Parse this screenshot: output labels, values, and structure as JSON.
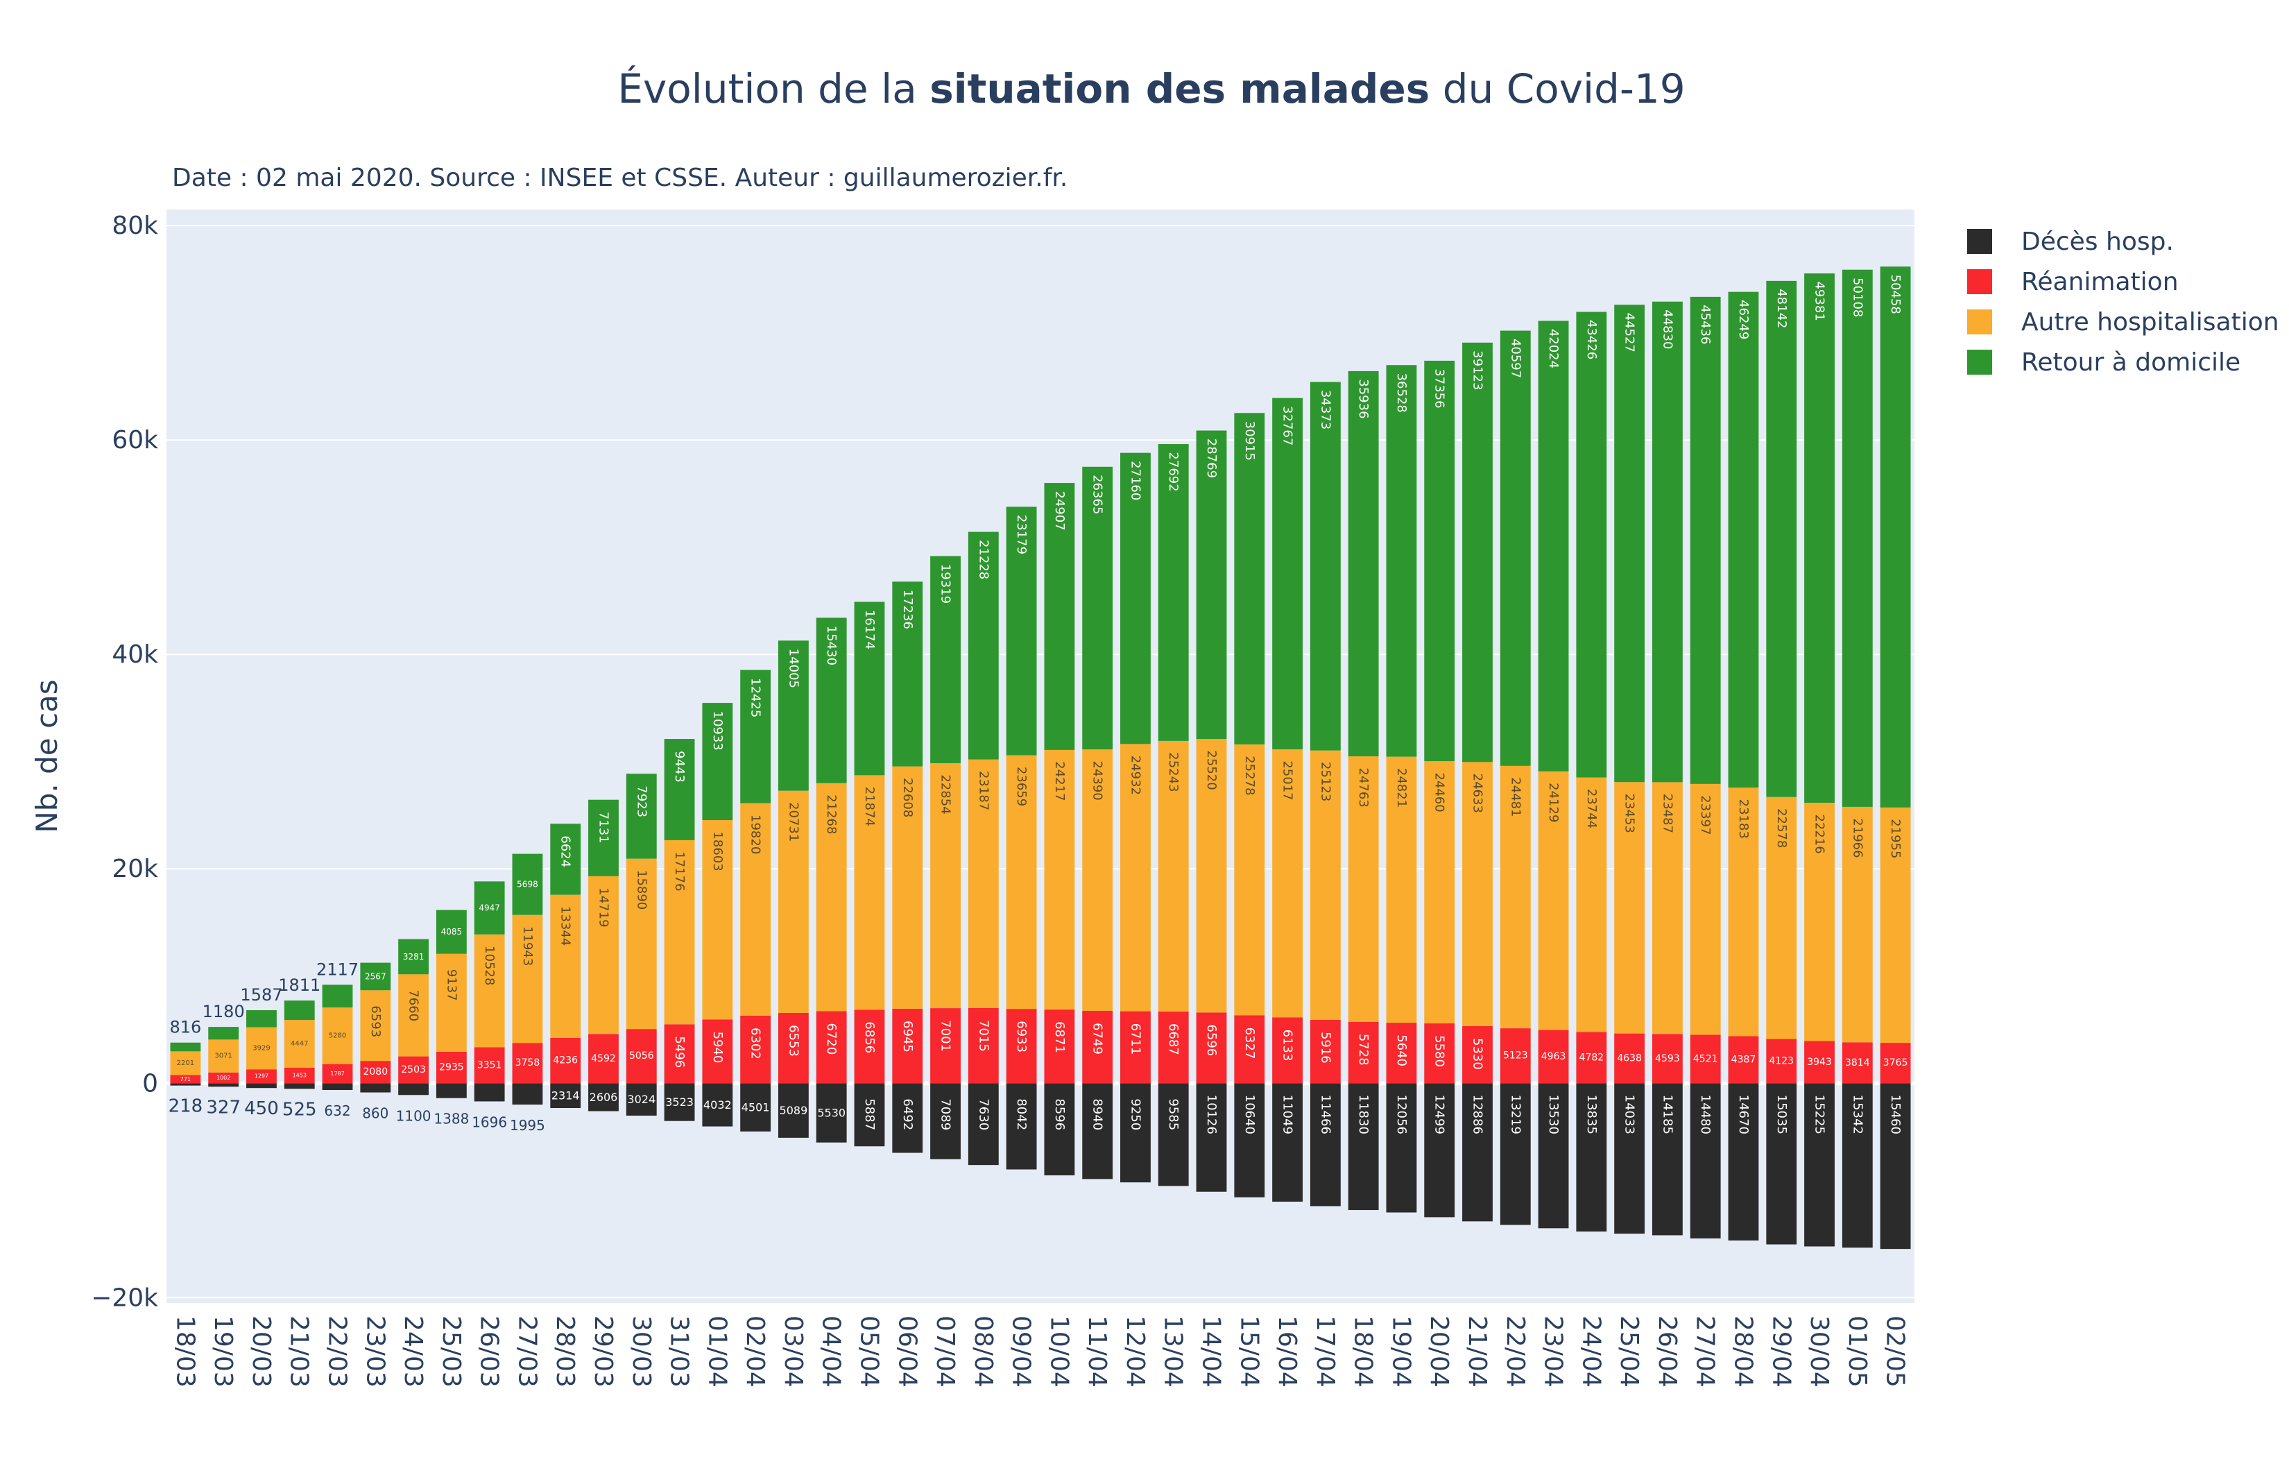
{
  "title": {
    "part1": "Évolution de la ",
    "bold": "situation des malades",
    "part2": " du Covid-19"
  },
  "subtitle": "Date : 02 mai 2020. Source : INSEE et CSSE. Auteur : guillaumerozier.fr.",
  "colors": {
    "plot_bg": "#e5ecf6",
    "deces": "#2b2b2b",
    "reanimation": "#f8282e",
    "autre_hosp": "#f9ac2d",
    "retour_domicile": "#2e962e",
    "text": "#2a3f5f"
  },
  "chart_data": {
    "type": "bar",
    "ylabel": "Nb. de cas",
    "xlabel": "",
    "ylim": [
      -20000,
      80000
    ],
    "yticks": [
      -20000,
      0,
      20000,
      40000,
      60000,
      80000
    ],
    "ytick_labels": [
      "−20k",
      "0",
      "20k",
      "40k",
      "60k",
      "80k"
    ],
    "grid": true,
    "legend_position": "top-right",
    "categories": [
      "18/03",
      "19/03",
      "20/03",
      "21/03",
      "22/03",
      "23/03",
      "24/03",
      "25/03",
      "26/03",
      "27/03",
      "28/03",
      "29/03",
      "30/03",
      "31/03",
      "01/04",
      "02/04",
      "03/04",
      "04/04",
      "05/04",
      "06/04",
      "07/04",
      "08/04",
      "09/04",
      "10/04",
      "11/04",
      "12/04",
      "13/04",
      "14/04",
      "15/04",
      "16/04",
      "17/04",
      "18/04",
      "19/04",
      "20/04",
      "21/04",
      "22/04",
      "23/04",
      "24/04",
      "25/04",
      "26/04",
      "27/04",
      "28/04",
      "29/04",
      "30/04",
      "01/05",
      "02/05"
    ],
    "series": [
      {
        "name": "Décès hosp.",
        "key": "deces",
        "values": [
          218,
          327,
          450,
          525,
          632,
          860,
          1100,
          1388,
          1696,
          1995,
          2314,
          2606,
          3024,
          3523,
          4032,
          4501,
          5089,
          5530,
          5887,
          6492,
          7089,
          7630,
          8042,
          8596,
          8940,
          9250,
          9585,
          10126,
          10640,
          11049,
          11466,
          11830,
          12056,
          12499,
          12886,
          13219,
          13530,
          13835,
          14033,
          14185,
          14480,
          14670,
          15035,
          15225,
          15342,
          15460
        ]
      },
      {
        "name": "Réanimation",
        "key": "reanimation",
        "values": [
          771,
          1002,
          1297,
          1453,
          1787,
          2080,
          2503,
          2935,
          3351,
          3758,
          4236,
          4592,
          5056,
          5496,
          5940,
          6302,
          6553,
          6720,
          6856,
          6945,
          7001,
          7015,
          6933,
          6871,
          6749,
          6711,
          6687,
          6596,
          6327,
          6133,
          5916,
          5728,
          5640,
          5580,
          5330,
          5123,
          4963,
          4782,
          4638,
          4593,
          4521,
          4387,
          4123,
          3943,
          3814,
          3765
        ]
      },
      {
        "name": "Autre hospitalisation",
        "key": "autre_hosp",
        "values": [
          2201,
          3071,
          3929,
          4447,
          5280,
          6593,
          7660,
          9137,
          10528,
          11943,
          13344,
          14719,
          15890,
          17176,
          18603,
          19820,
          20731,
          21268,
          21874,
          22608,
          22854,
          23187,
          23659,
          24217,
          24390,
          24932,
          25243,
          25520,
          25278,
          25017,
          25123,
          24763,
          24821,
          24460,
          24633,
          24481,
          24129,
          23744,
          23453,
          23487,
          23397,
          23183,
          22578,
          22216,
          21966,
          21955
        ]
      },
      {
        "name": "Retour à domicile",
        "key": "retour_domicile",
        "values": [
          816,
          1180,
          1587,
          1811,
          2117,
          2567,
          3281,
          4085,
          4947,
          5698,
          6624,
          7131,
          7923,
          9443,
          10933,
          12425,
          14005,
          15430,
          16174,
          17236,
          19319,
          21228,
          23179,
          24907,
          26365,
          27160,
          27692,
          28769,
          30915,
          32767,
          34373,
          35936,
          36528,
          37356,
          39123,
          40597,
          42024,
          43426,
          44527,
          44830,
          45436,
          46249,
          48142,
          49381,
          50108,
          50458
        ]
      }
    ]
  }
}
